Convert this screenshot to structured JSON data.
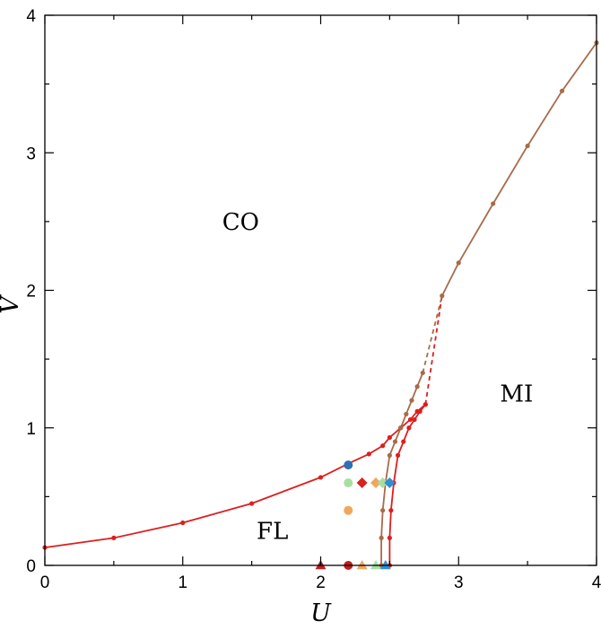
{
  "chart_data": {
    "type": "line",
    "title": "",
    "xlabel": "U",
    "ylabel": "V",
    "xlim": [
      0,
      4
    ],
    "ylim": [
      0,
      4
    ],
    "xticks": [
      "0",
      "1",
      "2",
      "3",
      "4"
    ],
    "yticks": [
      "0",
      "1",
      "2",
      "3",
      "4"
    ],
    "grid": false,
    "regions": [
      {
        "label": "CO",
        "x": 1.42,
        "y": 2.5
      },
      {
        "label": "FL",
        "x": 1.65,
        "y": 0.25
      },
      {
        "label": "MI",
        "x": 3.42,
        "y": 1.25
      }
    ],
    "series": [
      {
        "color": "#dd1f1f",
        "style": "solid",
        "x": [
          0.0,
          0.5,
          1.0,
          1.5,
          2.0,
          2.2,
          2.35,
          2.45,
          2.5,
          2.58,
          2.65,
          2.7,
          2.76
        ],
        "y": [
          0.13,
          0.2,
          0.31,
          0.45,
          0.64,
          0.74,
          0.81,
          0.87,
          0.93,
          1.0,
          1.06,
          1.12,
          1.17
        ]
      },
      {
        "color": "#dd1f1f",
        "style": "solid",
        "x": [
          2.5,
          2.5,
          2.51,
          2.53,
          2.56,
          2.6,
          2.64,
          2.68,
          2.72,
          2.76
        ],
        "y": [
          0.0,
          0.2,
          0.4,
          0.6,
          0.8,
          0.9,
          1.0,
          1.06,
          1.12,
          1.17
        ]
      },
      {
        "color": "#dd1f1f",
        "style": "dashed",
        "x": [
          2.76,
          2.88
        ],
        "y": [
          1.17,
          1.96
        ]
      },
      {
        "color": "#a86b4a",
        "style": "solid",
        "x": [
          2.88,
          3.0,
          3.25,
          3.5,
          3.75,
          4.0
        ],
        "y": [
          1.96,
          2.2,
          2.63,
          3.05,
          3.45,
          3.8
        ]
      },
      {
        "color": "#a86b4a",
        "style": "solid",
        "x": [
          2.44,
          2.44,
          2.45,
          2.47,
          2.5,
          2.54,
          2.58,
          2.62,
          2.66,
          2.7,
          2.74
        ],
        "y": [
          0.0,
          0.2,
          0.4,
          0.6,
          0.8,
          0.9,
          1.0,
          1.1,
          1.2,
          1.3,
          1.4
        ]
      },
      {
        "color": "#a86b4a",
        "style": "dashed",
        "x": [
          2.74,
          2.88
        ],
        "y": [
          1.4,
          1.96
        ]
      }
    ],
    "markers": [
      {
        "shape": "circle",
        "color": "#2f6fb4",
        "x": 2.2,
        "y": 0.73
      },
      {
        "shape": "circle",
        "color": "#a8dfa0",
        "x": 2.2,
        "y": 0.6
      },
      {
        "shape": "diamond",
        "color": "#dd1f1f",
        "x": 2.3,
        "y": 0.6
      },
      {
        "shape": "diamond",
        "color": "#f2a65a",
        "x": 2.4,
        "y": 0.6
      },
      {
        "shape": "diamond",
        "color": "#a8dfa0",
        "x": 2.45,
        "y": 0.6
      },
      {
        "shape": "diamond",
        "color": "#2f8fd0",
        "x": 2.5,
        "y": 0.6
      },
      {
        "shape": "circle",
        "color": "#f2a65a",
        "x": 2.2,
        "y": 0.4
      },
      {
        "shape": "triangle",
        "color": "#c21d1d",
        "x": 2.0,
        "y": 0.0
      },
      {
        "shape": "circle",
        "color": "#c21d1d",
        "x": 2.2,
        "y": 0.0
      },
      {
        "shape": "triangle",
        "color": "#f2a65a",
        "x": 2.3,
        "y": 0.0
      },
      {
        "shape": "triangle",
        "color": "#a8dfa0",
        "x": 2.4,
        "y": 0.0
      },
      {
        "shape": "triangle",
        "color": "#2f8fd0",
        "x": 2.47,
        "y": 0.0
      }
    ]
  }
}
